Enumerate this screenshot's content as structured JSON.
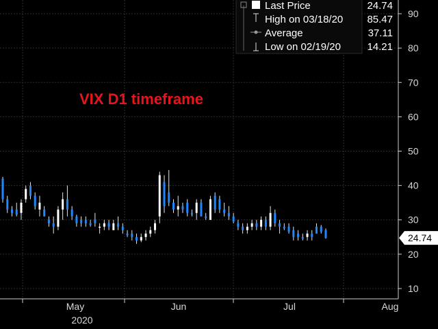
{
  "chart_data": {
    "type": "candlestick",
    "title": "VIX D1 timeframe",
    "y_ticks": [
      10,
      20,
      30,
      40,
      50,
      60,
      70,
      80,
      90
    ],
    "ylim": [
      7,
      94
    ],
    "x_ticks": [
      "May",
      "Jun",
      "Jul",
      "Aug"
    ],
    "x_year_label": "2020",
    "last_price_tag": "24.74",
    "colors": {
      "up": "#ffffff",
      "down": "#1e88ff",
      "title": "#e8141c",
      "grid": "#2d2d2d"
    },
    "legend": [
      {
        "label": "Last Price",
        "value": "24.74",
        "icon": "square-icon"
      },
      {
        "label": "High on 03/18/20",
        "value": "85.47",
        "icon": "high-marker-icon"
      },
      {
        "label": "Average",
        "value": "37.11",
        "icon": "average-line-icon"
      },
      {
        "label": "Low on 02/19/20",
        "value": "14.21",
        "icon": "low-marker-icon"
      }
    ],
    "candles": [
      [
        42,
        42.5,
        35,
        36,
        "down"
      ],
      [
        36,
        37,
        32,
        33,
        "down"
      ],
      [
        33,
        34,
        31,
        32,
        "down"
      ],
      [
        33,
        35,
        31,
        31.5,
        "down"
      ],
      [
        32,
        36,
        30,
        35,
        "up"
      ],
      [
        39,
        40,
        35,
        36,
        "up"
      ],
      [
        40,
        41,
        36,
        37,
        "down"
      ],
      [
        37,
        38,
        33,
        34,
        "down"
      ],
      [
        33,
        37,
        31,
        35,
        "up"
      ],
      [
        33,
        34,
        31,
        31,
        "down"
      ],
      [
        30,
        31,
        28,
        29,
        "down"
      ],
      [
        29,
        31,
        26,
        28,
        "down"
      ],
      [
        28,
        34,
        27,
        33,
        "up"
      ],
      [
        33,
        38,
        30,
        36,
        "up"
      ],
      [
        36,
        40,
        31,
        33,
        "down"
      ],
      [
        33,
        34,
        30,
        31,
        "down"
      ],
      [
        31,
        31.5,
        28,
        29,
        "down"
      ],
      [
        29,
        31,
        28,
        30,
        "down"
      ],
      [
        30,
        31,
        28,
        29,
        "down"
      ],
      [
        29,
        30,
        28,
        28.5,
        "down"
      ],
      [
        30,
        32,
        28,
        29,
        "down"
      ],
      [
        28,
        29,
        26,
        28,
        "up"
      ],
      [
        28,
        30,
        27,
        29,
        "up"
      ],
      [
        29,
        30,
        27,
        28,
        "down"
      ],
      [
        27,
        30,
        27,
        29,
        "up"
      ],
      [
        29,
        31,
        27,
        28,
        "down"
      ],
      [
        28,
        29,
        26,
        27,
        "down"
      ],
      [
        26,
        27,
        25,
        25.5,
        "down"
      ],
      [
        26,
        27,
        24,
        25,
        "down"
      ],
      [
        25,
        26,
        23,
        24,
        "down"
      ],
      [
        24,
        26,
        23.5,
        25,
        "up"
      ],
      [
        25,
        27,
        24,
        26,
        "up"
      ],
      [
        26,
        28,
        25,
        27,
        "up"
      ],
      [
        27,
        30,
        26,
        29,
        "up"
      ],
      [
        31,
        44,
        29,
        43,
        "up"
      ],
      [
        41,
        43,
        32,
        34,
        "down"
      ],
      [
        38,
        44.5,
        34,
        35,
        "down"
      ],
      [
        35,
        36,
        32,
        33,
        "down"
      ],
      [
        33,
        37,
        31,
        34,
        "up"
      ],
      [
        34,
        35,
        32,
        33,
        "down"
      ],
      [
        35,
        36,
        31,
        32,
        "down"
      ],
      [
        32,
        33,
        31,
        31.5,
        "down"
      ],
      [
        32,
        36,
        30,
        35,
        "up"
      ],
      [
        35,
        36,
        31,
        31,
        "down"
      ],
      [
        31,
        32,
        30,
        30.5,
        "down"
      ],
      [
        30,
        37,
        30,
        36,
        "up"
      ],
      [
        37,
        38,
        32,
        33,
        "down"
      ],
      [
        36,
        37,
        32,
        33,
        "down"
      ],
      [
        33,
        35,
        31,
        32,
        "down"
      ],
      [
        32,
        34,
        30,
        31,
        "down"
      ],
      [
        31,
        32,
        29,
        29.5,
        "down"
      ],
      [
        29,
        30,
        27,
        28,
        "down"
      ],
      [
        28,
        29,
        26,
        27,
        "down"
      ],
      [
        27,
        29,
        26,
        28,
        "up"
      ],
      [
        28,
        30,
        27,
        29,
        "up"
      ],
      [
        29,
        30,
        27,
        28,
        "down"
      ],
      [
        28,
        31,
        27,
        30,
        "up"
      ],
      [
        30,
        31,
        27,
        28,
        "down"
      ],
      [
        28,
        34,
        27,
        32,
        "up"
      ],
      [
        32,
        33,
        28,
        29,
        "down"
      ],
      [
        29,
        30,
        26,
        28,
        "down"
      ],
      [
        28,
        29,
        27,
        27.5,
        "down"
      ],
      [
        28,
        29,
        26,
        26.5,
        "down"
      ],
      [
        27,
        28,
        24,
        25,
        "down"
      ],
      [
        26,
        27,
        24,
        25,
        "down"
      ],
      [
        25,
        26,
        24,
        24.5,
        "down"
      ],
      [
        25,
        27,
        24,
        26,
        "up"
      ],
      [
        26,
        27,
        24,
        25,
        "down"
      ],
      [
        26,
        29,
        26,
        28,
        "down"
      ],
      [
        28,
        28.5,
        26,
        26.5,
        "down"
      ],
      [
        27,
        27.5,
        24.5,
        24.74,
        "down"
      ]
    ]
  }
}
